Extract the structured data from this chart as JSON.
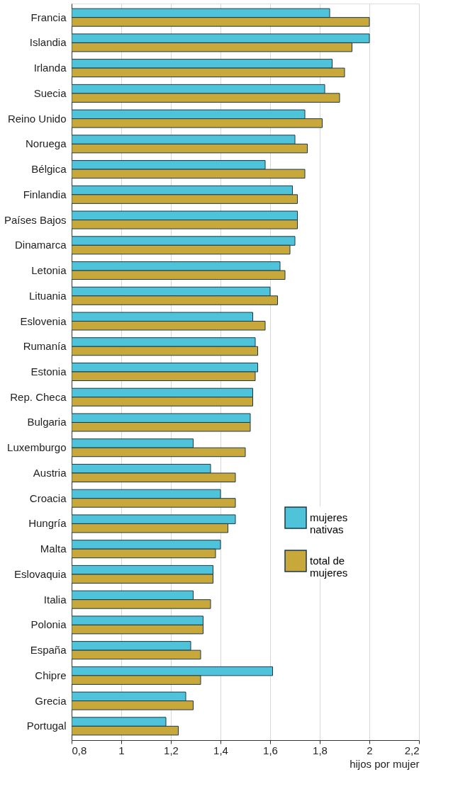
{
  "chart_data": {
    "type": "bar",
    "orientation": "horizontal",
    "xlabel": "hijos por mujer",
    "categories": [
      "Francia",
      "Islandia",
      "Irlanda",
      "Suecia",
      "Reino Unido",
      "Noruega",
      "Bélgica",
      "Finlandia",
      "Países Bajos",
      "Dinamarca",
      "Letonia",
      "Lituania",
      "Eslovenia",
      "Rumanía",
      "Estonia",
      "Rep. Checa",
      "Bulgaria",
      "Luxemburgo",
      "Austria",
      "Croacia",
      "Hungría",
      "Malta",
      "Eslovaquia",
      "Italia",
      "Polonia",
      "España",
      "Chipre",
      "Grecia",
      "Portugal"
    ],
    "series": [
      {
        "name": "mujeres nativas",
        "color": "#4fc3d9",
        "values": [
          1.84,
          2.0,
          1.85,
          1.82,
          1.74,
          1.7,
          1.58,
          1.69,
          1.71,
          1.7,
          1.64,
          1.6,
          1.53,
          1.54,
          1.55,
          1.53,
          1.52,
          1.29,
          1.36,
          1.4,
          1.46,
          1.4,
          1.37,
          1.29,
          1.33,
          1.28,
          1.61,
          1.26,
          1.18
        ]
      },
      {
        "name": "total de mujeres",
        "color": "#c8a83a",
        "values": [
          2.0,
          1.93,
          1.9,
          1.88,
          1.81,
          1.75,
          1.74,
          1.71,
          1.71,
          1.68,
          1.66,
          1.63,
          1.58,
          1.55,
          1.54,
          1.53,
          1.52,
          1.5,
          1.46,
          1.46,
          1.43,
          1.38,
          1.37,
          1.36,
          1.33,
          1.32,
          1.32,
          1.29,
          1.23
        ]
      }
    ],
    "xlim": [
      0.8,
      2.2
    ],
    "xticks": [
      {
        "value": 0.8,
        "label": "0,8"
      },
      1,
      {
        "value": 1.2,
        "label": "1,2"
      },
      {
        "value": 1.4,
        "label": "1,4"
      },
      {
        "value": 1.6,
        "label": "1,6"
      },
      {
        "value": 1.8,
        "label": "1,8"
      },
      2,
      {
        "value": 2.2,
        "label": "2,2"
      }
    ],
    "grid": "x",
    "legend": "bottom right"
  }
}
